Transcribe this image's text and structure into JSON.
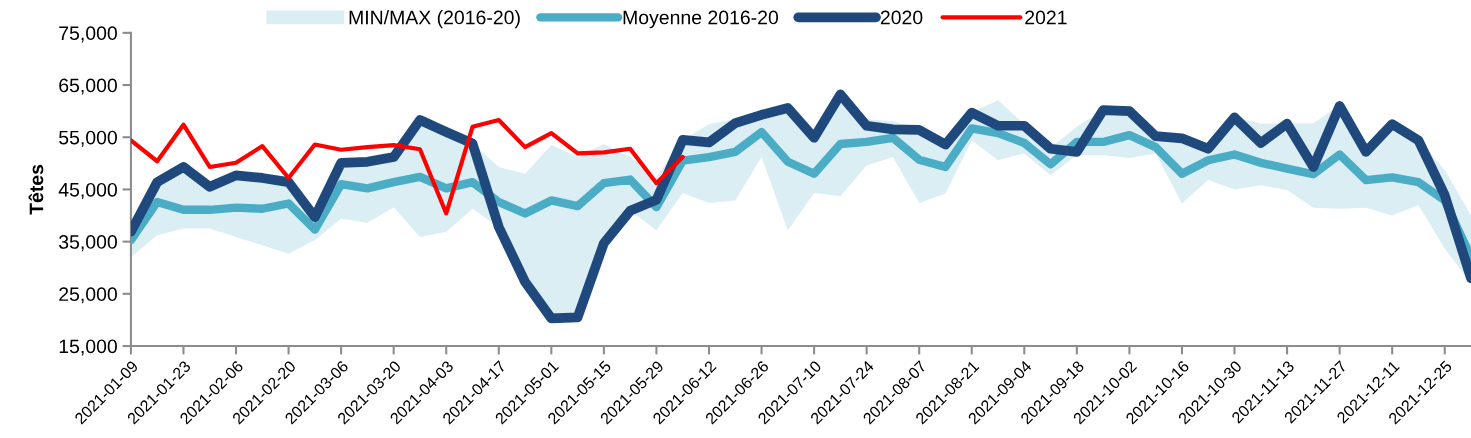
{
  "chart_data": {
    "type": "line",
    "ylabel": "Têtes",
    "x": [
      "2021-01-09",
      "2021-01-16",
      "2021-01-23",
      "2021-01-30",
      "2021-02-06",
      "2021-02-13",
      "2021-02-20",
      "2021-02-27",
      "2021-03-06",
      "2021-03-13",
      "2021-03-20",
      "2021-03-27",
      "2021-04-03",
      "2021-04-10",
      "2021-04-17",
      "2021-04-24",
      "2021-05-01",
      "2021-05-08",
      "2021-05-15",
      "2021-05-22",
      "2021-05-29",
      "2021-06-05",
      "2021-06-12",
      "2021-06-19",
      "2021-06-26",
      "2021-07-03",
      "2021-07-10",
      "2021-07-17",
      "2021-07-24",
      "2021-07-31",
      "2021-08-07",
      "2021-08-14",
      "2021-08-21",
      "2021-08-28",
      "2021-09-04",
      "2021-09-11",
      "2021-09-18",
      "2021-09-25",
      "2021-10-02",
      "2021-10-09",
      "2021-10-16",
      "2021-10-23",
      "2021-10-30",
      "2021-11-06",
      "2021-11-13",
      "2021-11-20",
      "2021-11-27",
      "2021-12-04",
      "2021-12-11",
      "2021-12-18",
      "2021-12-25",
      "2022-01-01"
    ],
    "series": [
      {
        "name": "MIN/MAX (2016-20)",
        "type": "line",
        "color": "#daeef3",
        "values": [
          null,
          null,
          null,
          null,
          null,
          null,
          null,
          null,
          null,
          null,
          null,
          null,
          null,
          null,
          null,
          null,
          null,
          null,
          null,
          null,
          null,
          null,
          null,
          null,
          null,
          null,
          null,
          null,
          null,
          null,
          null,
          null,
          null,
          null,
          null,
          null,
          null,
          null,
          null,
          null,
          null,
          null,
          null,
          null,
          null,
          null,
          null,
          null,
          null,
          null,
          null,
          null
        ],
        "lower": [
          32000,
          36200,
          37500,
          37500,
          35900,
          34300,
          32700,
          35300,
          39400,
          38600,
          41600,
          35900,
          36900,
          41300,
          37800,
          27300,
          20300,
          20500,
          34700,
          40900,
          37200,
          44300,
          42400,
          42900,
          51200,
          37200,
          44300,
          43700,
          49600,
          51200,
          42400,
          44200,
          54400,
          50600,
          51900,
          47700,
          51600,
          51600,
          51000,
          51900,
          42300,
          46800,
          45000,
          45800,
          44900,
          41500,
          41300,
          41500,
          40000,
          42000,
          33700,
          27000
        ],
        "upper": [
          36900,
          46400,
          49300,
          45500,
          47700,
          47200,
          46400,
          39700,
          50100,
          50300,
          51200,
          58300,
          56000,
          53800,
          49300,
          48000,
          53500,
          51200,
          53700,
          51200,
          47400,
          54500,
          57500,
          58500,
          59500,
          60600,
          55500,
          63200,
          58500,
          58000,
          56600,
          53800,
          59800,
          62100,
          57500,
          53000,
          57000,
          60300,
          60100,
          55400,
          55000,
          53000,
          58900,
          57600,
          57700,
          57700,
          61200,
          53500,
          57600,
          54600,
          48700,
          40000
        ]
      },
      {
        "name": "Moyenne 2016-20",
        "type": "line",
        "color": "#4bacc6",
        "values": [
          35300,
          42600,
          41100,
          41100,
          41500,
          41300,
          42300,
          37300,
          46000,
          45200,
          46400,
          47400,
          45200,
          46400,
          42600,
          40400,
          42900,
          41800,
          46200,
          46900,
          41600,
          50500,
          51200,
          52200,
          56000,
          50300,
          48000,
          53700,
          54100,
          54900,
          50700,
          49300,
          56700,
          55800,
          53900,
          49800,
          54100,
          54100,
          55400,
          53100,
          48000,
          50600,
          51700,
          50100,
          49000,
          47900,
          51700,
          46800,
          47300,
          46400,
          42900,
          32000
        ]
      },
      {
        "name": "2020",
        "type": "line",
        "color": "#1f497d",
        "values": [
          36900,
          46400,
          49300,
          45500,
          47700,
          47200,
          46400,
          39700,
          50100,
          50300,
          51200,
          58300,
          56000,
          53800,
          37800,
          27300,
          20300,
          20500,
          34700,
          40900,
          43000,
          54500,
          54000,
          57700,
          59300,
          60600,
          54900,
          63200,
          57200,
          56500,
          56400,
          53600,
          59700,
          57200,
          57200,
          52800,
          52200,
          60200,
          60000,
          55200,
          54800,
          52800,
          58800,
          53900,
          57600,
          49300,
          61000,
          52200,
          57500,
          54400,
          43900,
          28000
        ]
      },
      {
        "name": "2021",
        "type": "line",
        "color": "#ff0000",
        "values": [
          54400,
          50400,
          57400,
          49300,
          50100,
          53300,
          47200,
          53600,
          52600,
          53100,
          53500,
          52700,
          40400,
          57000,
          58300,
          53100,
          55800,
          51900,
          52100,
          52800,
          46200,
          51200,
          null,
          null,
          null,
          null,
          null,
          null,
          null,
          null,
          null,
          null,
          null,
          null,
          null,
          null,
          null,
          null,
          null,
          null,
          null,
          null,
          null,
          null,
          null,
          null,
          null,
          null,
          null,
          null,
          null,
          null
        ]
      }
    ],
    "xlim": [
      "2021-01-09",
      "2022-01-01"
    ],
    "xticks": [
      "2021-01-09",
      "2021-01-23",
      "2021-02-06",
      "2021-02-20",
      "2021-03-06",
      "2021-03-20",
      "2021-04-03",
      "2021-04-17",
      "2021-05-01",
      "2021-05-15",
      "2021-05-29",
      "2021-06-12",
      "2021-06-26",
      "2021-07-10",
      "2021-07-24",
      "2021-08-07",
      "2021-08-21",
      "2021-09-04",
      "2021-09-18",
      "2021-10-02",
      "2021-10-16",
      "2021-10-30",
      "2021-11-13",
      "2021-11-27",
      "2021-12-11",
      "2021-12-25"
    ],
    "ylim": [
      15000,
      75000
    ],
    "yticks": [
      {
        "value": 15000,
        "label": "15,000"
      },
      {
        "value": 25000,
        "label": "25,000"
      },
      {
        "value": 35000,
        "label": "35,000"
      },
      {
        "value": 45000,
        "label": "45,000"
      },
      {
        "value": 55000,
        "label": "55,000"
      },
      {
        "value": 65000,
        "label": "65,000"
      },
      {
        "value": 75000,
        "label": "75,000"
      }
    ],
    "grid": false,
    "legend": "top"
  }
}
